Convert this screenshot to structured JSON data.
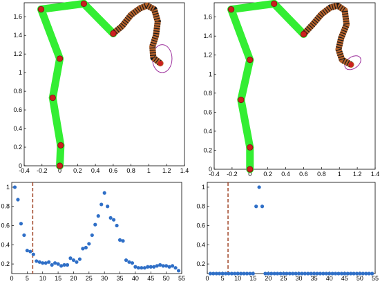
{
  "chart_data": [
    {
      "type": "line",
      "panel": "top-left",
      "xlim": [
        -0.4,
        1.4
      ],
      "ylim": [
        0,
        1.75
      ],
      "xticks": [
        "-0.4",
        "-0.2",
        "0",
        "0.2",
        "0.4",
        "0.6",
        "0.8",
        "1",
        "1.2",
        "1.4"
      ],
      "yticks": [
        "0",
        "0.2",
        "0.4",
        "0.6",
        "0.8",
        "1",
        "1.2",
        "1.4",
        "1.6"
      ],
      "arm_joints": [
        [
          0,
          0
        ],
        [
          0.01,
          0.22
        ],
        [
          -0.08,
          0.73
        ],
        [
          0.0,
          1.15
        ],
        [
          -0.21,
          1.68
        ],
        [
          0.27,
          1.74
        ],
        [
          0.6,
          1.42
        ]
      ],
      "tentacle": [
        [
          0.6,
          1.42
        ],
        [
          0.7,
          1.5
        ],
        [
          0.8,
          1.62
        ],
        [
          0.9,
          1.69
        ],
        [
          0.98,
          1.72
        ],
        [
          1.06,
          1.68
        ],
        [
          1.1,
          1.55
        ],
        [
          1.08,
          1.4
        ],
        [
          1.04,
          1.28
        ],
        [
          1.05,
          1.16
        ],
        [
          1.13,
          1.1
        ]
      ],
      "target_ellipse": {
        "cx": 1.15,
        "cy": 1.15,
        "rx": 0.11,
        "ry": 0.15
      },
      "colors": {
        "links": "#33ee33",
        "joints": "#cc1f1f",
        "tentacle": "#b5612a",
        "ellipse": "#9c2f9c"
      }
    },
    {
      "type": "line",
      "panel": "top-right",
      "xlim": [
        -0.4,
        1.4
      ],
      "ylim": [
        0,
        1.75
      ],
      "xticks": [
        "-0.4",
        "-0.2",
        "0",
        "0.2",
        "0.4",
        "0.6",
        "0.8",
        "1",
        "1.2",
        "1.4"
      ],
      "yticks": [
        "0",
        "0.2",
        "0.4",
        "0.6",
        "0.8",
        "1",
        "1.2",
        "1.4",
        "1.6"
      ],
      "arm_joints": [
        [
          0,
          0
        ],
        [
          0.0,
          0.23
        ],
        [
          -0.1,
          0.73
        ],
        [
          0.0,
          1.15
        ],
        [
          -0.21,
          1.68
        ],
        [
          0.27,
          1.74
        ],
        [
          0.6,
          1.42
        ]
      ],
      "tentacle": [
        [
          0.6,
          1.42
        ],
        [
          0.7,
          1.52
        ],
        [
          0.8,
          1.63
        ],
        [
          0.9,
          1.7
        ],
        [
          0.98,
          1.72
        ],
        [
          1.06,
          1.67
        ],
        [
          1.08,
          1.52
        ],
        [
          1.02,
          1.38
        ],
        [
          0.99,
          1.26
        ],
        [
          1.03,
          1.15
        ],
        [
          1.13,
          1.1
        ]
      ],
      "target_ellipse": {
        "cx": 1.15,
        "cy": 1.12,
        "rx": 0.1,
        "ry": 0.06,
        "rotate": -35
      },
      "colors": {
        "links": "#33ee33",
        "joints": "#cc1f1f",
        "tentacle": "#b5612a",
        "ellipse": "#9c2f9c"
      }
    },
    {
      "type": "scatter",
      "panel": "bottom-left",
      "xlim": [
        0,
        55
      ],
      "ylim": [
        0.1,
        1.05
      ],
      "xticks": [
        "0",
        "5",
        "10",
        "15",
        "20",
        "25",
        "30",
        "35",
        "40",
        "45",
        "50",
        "55"
      ],
      "yticks": [
        "0.2",
        "0.4",
        "0.6",
        "0.8",
        "1"
      ],
      "vline_x": 6.8,
      "x": [
        1,
        2,
        3,
        4,
        5,
        6,
        7,
        8,
        9,
        10,
        11,
        12,
        13,
        14,
        15,
        16,
        17,
        18,
        19,
        20,
        21,
        22,
        23,
        24,
        25,
        26,
        27,
        28,
        29,
        30,
        31,
        32,
        33,
        34,
        35,
        36,
        37,
        38,
        39,
        40,
        41,
        42,
        43,
        44,
        45,
        46,
        47,
        48,
        49,
        50,
        51,
        52,
        53,
        54
      ],
      "y": [
        1.0,
        0.87,
        0.62,
        0.5,
        0.34,
        0.33,
        0.3,
        0.23,
        0.22,
        0.21,
        0.21,
        0.22,
        0.19,
        0.21,
        0.2,
        0.18,
        0.19,
        0.19,
        0.26,
        0.24,
        0.22,
        0.25,
        0.36,
        0.37,
        0.41,
        0.5,
        0.61,
        0.7,
        0.82,
        0.94,
        0.8,
        0.68,
        0.66,
        0.6,
        0.45,
        0.44,
        0.24,
        0.22,
        0.21,
        0.17,
        0.16,
        0.16,
        0.16,
        0.17,
        0.17,
        0.17,
        0.18,
        0.19,
        0.18,
        0.18,
        0.17,
        0.18,
        0.16,
        0.13
      ],
      "colors": {
        "points": "#2f6fc7",
        "vline": "#9b3a1a"
      }
    },
    {
      "type": "scatter",
      "panel": "bottom-right",
      "xlim": [
        0,
        55
      ],
      "ylim": [
        0.1,
        1.05
      ],
      "xticks": [
        "0",
        "5",
        "10",
        "15",
        "20",
        "25",
        "30",
        "35",
        "40",
        "45",
        "50",
        "55"
      ],
      "yticks": [
        "0.2",
        "0.4",
        "0.6",
        "0.8",
        "1"
      ],
      "vline_x": 6.8,
      "x": [
        1,
        2,
        3,
        4,
        5,
        6,
        7,
        8,
        9,
        10,
        11,
        12,
        13,
        14,
        15,
        16,
        17,
        18,
        19,
        20,
        21,
        22,
        23,
        24,
        25,
        26,
        27,
        28,
        29,
        30,
        31,
        32,
        33,
        34,
        35,
        36,
        37,
        38,
        39,
        40,
        41,
        42,
        43,
        44,
        45,
        46,
        47,
        48,
        49,
        50,
        51,
        52,
        53,
        54
      ],
      "y": [
        0.1,
        0.1,
        0.1,
        0.1,
        0.1,
        0.1,
        0.1,
        0.1,
        0.1,
        0.1,
        0.1,
        0.1,
        0.1,
        0.1,
        0.1,
        0.8,
        1.0,
        0.8,
        0.1,
        0.1,
        0.1,
        0.1,
        0.1,
        0.1,
        0.1,
        0.1,
        0.1,
        0.1,
        0.1,
        0.1,
        0.1,
        0.1,
        0.1,
        0.1,
        0.1,
        0.1,
        0.1,
        0.1,
        0.1,
        0.1,
        0.1,
        0.1,
        0.1,
        0.1,
        0.1,
        0.1,
        0.1,
        0.1,
        0.1,
        0.1,
        0.1,
        0.1,
        0.1,
        0.1
      ],
      "colors": {
        "points": "#2f6fc7",
        "vline": "#9b3a1a"
      }
    }
  ]
}
